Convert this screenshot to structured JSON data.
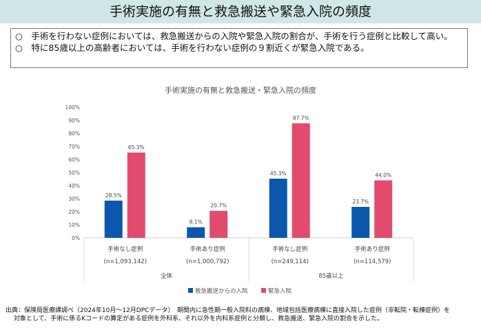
{
  "header": {
    "title": "手術実施の有無と救急搬送や緊急入院の頻度"
  },
  "summary": [
    "○　手術を行わない症例においては、救急搬送からの入院や緊急入院の割合が、手術を行う症例と比較して高い。",
    "○　特に85歳以上の高齢者においては、手術を行わない症例の９割近くが緊急入院である。"
  ],
  "source": [
    "出典：保険局医療課調べ（2024年10月～12月DPCデータ）　期間内に急性期一般入院料の病棟、地域包括医療病棟に直接入院した症例（非転院・転棟症例）を",
    "対象として、手術に係るKコードの算定がある症例を外科系、それ以外を内科系症例と分類し、救急搬送、緊急入院の割合を示した。"
  ],
  "chart_data": {
    "type": "bar",
    "title": "手術実施の有無と救急搬送・緊急入院の頻度",
    "categories": [
      "手術なし症例",
      "手術あり症例",
      "手術なし症例",
      "手術あり症例"
    ],
    "category_n": [
      "(n=1,093,142)",
      "(n=1,000,792)",
      "(n=249,114)",
      "(n=114,579)"
    ],
    "groups": [
      "全体",
      "85歳以上"
    ],
    "ylim": [
      0,
      100
    ],
    "yticks": [
      "0%",
      "10%",
      "20%",
      "30%",
      "40%",
      "50%",
      "60%",
      "70%",
      "80%",
      "90%",
      "100%"
    ],
    "series": [
      {
        "name": "救急搬送からの入院",
        "values": [
          28.5,
          8.1,
          45.3,
          23.7
        ],
        "labels": [
          "28.5%",
          "8.1%",
          "45.3%",
          "23.7%"
        ],
        "color": "#0a57ad"
      },
      {
        "name": "緊急入院",
        "values": [
          65.3,
          20.7,
          87.7,
          44.0
        ],
        "labels": [
          "65.3%",
          "20.7%",
          "87.7%",
          "44.0%"
        ],
        "color": "#e04b6e"
      }
    ],
    "legend": "bottom",
    "grid": false
  }
}
